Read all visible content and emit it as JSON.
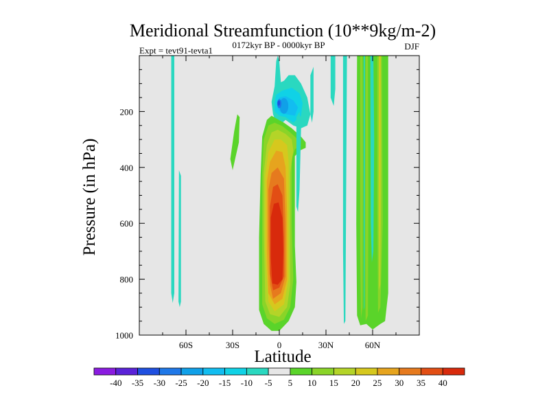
{
  "chart_data": {
    "type": "heatmap",
    "title": "Meridional Streamfunction (10**9kg/m-2)",
    "left_subtitle": "Expt = tevt91-tevta1",
    "center_subtitle": "0172kyr BP - 0000kyr BP",
    "right_subtitle": "DJF",
    "xlabel": "Latitude",
    "ylabel": "Pressure (in hPa)",
    "x_ticks": [
      {
        "value": -60,
        "label": "60S"
      },
      {
        "value": -30,
        "label": "30S"
      },
      {
        "value": 0,
        "label": "0"
      },
      {
        "value": 30,
        "label": "30N"
      },
      {
        "value": 60,
        "label": "60N"
      }
    ],
    "y_ticks": [
      {
        "value": 200,
        "label": "200"
      },
      {
        "value": 400,
        "label": "400"
      },
      {
        "value": 600,
        "label": "600"
      },
      {
        "value": 800,
        "label": "800"
      },
      {
        "value": 1000,
        "label": "1000"
      }
    ],
    "xlim": [
      -90,
      90
    ],
    "ylim": [
      1000,
      0
    ],
    "levels": [
      -40,
      -35,
      -30,
      -25,
      -20,
      -15,
      -10,
      -5,
      5,
      10,
      15,
      20,
      25,
      30,
      35,
      40
    ],
    "colors": [
      "#8a1be0",
      "#5a22d8",
      "#1f4fe0",
      "#1f78e8",
      "#10a0e8",
      "#12bdf0",
      "#10d2e6",
      "#2ad8c0",
      "#e6e6e6",
      "#5ad42a",
      "#8ad428",
      "#b4d428",
      "#d6c81e",
      "#e6a41e",
      "#e67a1e",
      "#e24e14",
      "#d82a0c"
    ],
    "colorbar_labels": [
      "-40",
      "-35",
      "-30",
      "-25",
      "-20",
      "-15",
      "-10",
      "-5",
      "5",
      "10",
      "15",
      "20",
      "25",
      "30",
      "35",
      "40"
    ],
    "features": [
      {
        "desc": "Hadley cell (positive)",
        "center": [
          0,
          650
        ],
        "peak": 40
      },
      {
        "desc": "upper tropospheric negative cell",
        "center": [
          7,
          190
        ],
        "peak": -30
      },
      {
        "desc": "northern midlatitude positive band",
        "center": [
          60,
          500
        ],
        "peak": 15
      },
      {
        "desc": "southern weak negative strip",
        "center": [
          -68,
          400
        ],
        "peak": -5
      }
    ]
  }
}
